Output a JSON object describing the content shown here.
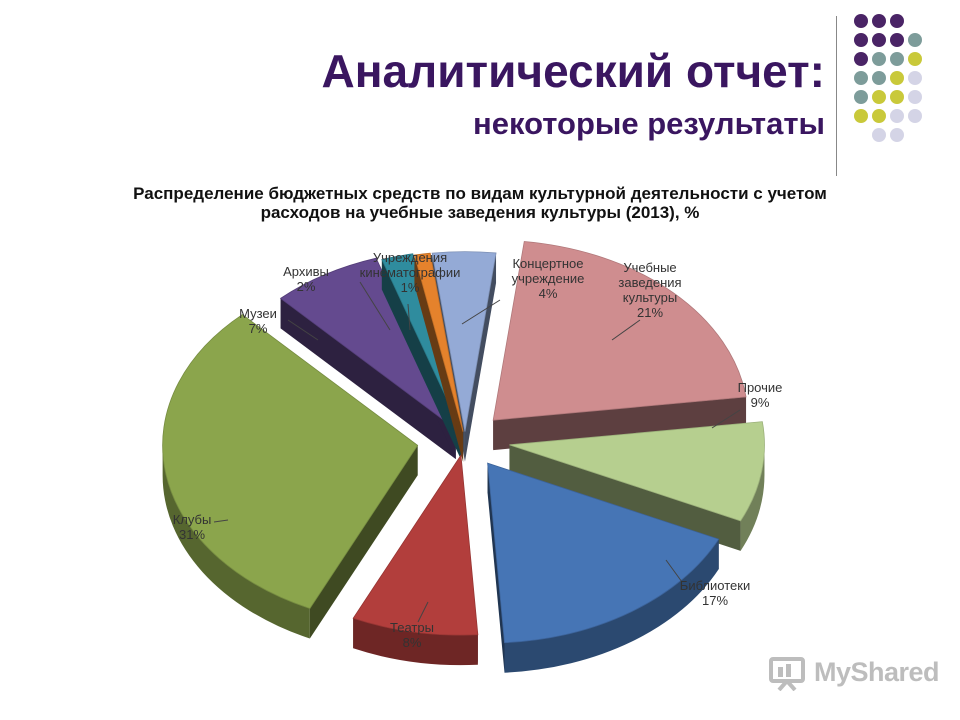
{
  "header": {
    "title": "Аналитический отчет:",
    "subtitle": "некоторые результаты"
  },
  "decor": {
    "dot_colors": [
      "#4a2466",
      "#7d9c9a",
      "#c9c93a",
      "#d4d4e6"
    ]
  },
  "logo": {
    "text": "MyShared"
  },
  "chart_data": {
    "type": "pie",
    "title": "Распределение бюджетных средств по видам культурной деятельности с учетом",
    "title_line2": "расходов на учебные заведения культуры (2013), %",
    "three_d": true,
    "exploded": true,
    "slices": [
      {
        "label": "Учебные заведения культуры",
        "value": 21,
        "value_label": "21%",
        "color": "#cf8d8f"
      },
      {
        "label": "Прочие",
        "value": 9,
        "value_label": "9%",
        "color": "#b6cf8f"
      },
      {
        "label": "Библиотеки",
        "value": 17,
        "value_label": "17%",
        "color": "#4675b5"
      },
      {
        "label": "Театры",
        "value": 8,
        "value_label": "8%",
        "color": "#b23e3c"
      },
      {
        "label": "Клубы",
        "value": 31,
        "value_label": "31%",
        "color": "#8ba54c"
      },
      {
        "label": "Музеи",
        "value": 7,
        "value_label": "7%",
        "color": "#644a8f"
      },
      {
        "label": "Архивы",
        "value": 2,
        "value_label": "2%",
        "color": "#2f8c9e"
      },
      {
        "label": "Учреждения кинематографии",
        "value": 1,
        "value_label": "1%",
        "color": "#e5822c"
      },
      {
        "label": "Концертное учреждение",
        "value": 4,
        "value_label": "4%",
        "color": "#94aad6"
      }
    ],
    "label_lines": [
      [
        "Учебные",
        "заведения",
        "культуры",
        "21%"
      ],
      [
        "Прочие",
        "9%"
      ],
      [
        "Библиотеки",
        "17%"
      ],
      [
        "Театры",
        "8%"
      ],
      [
        "Клубы",
        "31%"
      ],
      [
        "Музеи",
        "7%"
      ],
      [
        "Архивы",
        "2%"
      ],
      [
        "Учреждения",
        "кинематографии",
        "1%"
      ],
      [
        "Концертное",
        "учреждение",
        "4%"
      ]
    ]
  }
}
